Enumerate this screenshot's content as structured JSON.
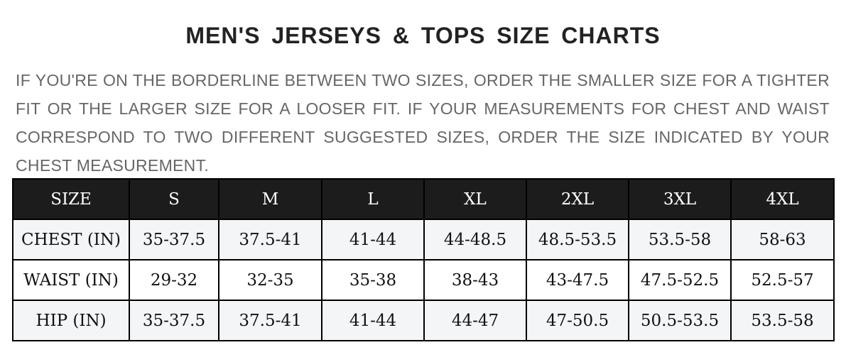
{
  "title": "MEN'S JERSEYS & TOPS SIZE CHARTS",
  "note": "IF YOU'RE ON THE BORDERLINE BETWEEN TWO SIZES, ORDER THE SMALLER SIZE FOR A TIGHTER FIT OR THE LARGER SIZE FOR A LOOSER FIT. IF YOUR MEASUREMENTS FOR CHEST AND WAIST CORRESPOND TO TWO DIFFERENT SUGGESTED SIZES, ORDER THE SIZE INDICATED BY YOUR CHEST MEASUREMENT.",
  "table": {
    "header": [
      "SIZE",
      "S",
      "M",
      "L",
      "XL",
      "2XL",
      "3XL",
      "4XL"
    ],
    "rows": [
      [
        "CHEST (IN)",
        "35-37.5",
        "37.5-41",
        "41-44",
        "44-48.5",
        "48.5-53.5",
        "53.5-58",
        "58-63"
      ],
      [
        "WAIST (IN)",
        "29-32",
        "32-35",
        "35-38",
        "38-43",
        "43-47.5",
        "47.5-52.5",
        "52.5-57"
      ],
      [
        "HIP (IN)",
        "35-37.5",
        "37.5-41",
        "41-44",
        "44-47",
        "47-50.5",
        "50.5-53.5",
        "53.5-58"
      ]
    ]
  },
  "colors": {
    "header_bg": "#1c1c1c",
    "stripe_bg": "#f4f5f7",
    "note_text": "#666666"
  }
}
